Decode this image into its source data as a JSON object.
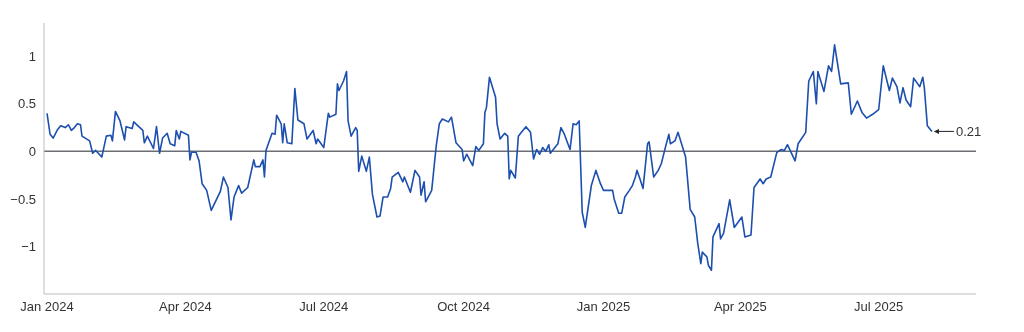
{
  "chart_data": {
    "type": "line",
    "x": [
      "2024-01-01",
      "2024-01-03",
      "2024-01-05",
      "2024-01-08",
      "2024-01-10",
      "2024-01-13",
      "2024-01-15",
      "2024-01-17",
      "2024-01-19",
      "2024-01-21",
      "2024-01-23",
      "2024-01-24",
      "2024-01-29",
      "2024-01-31",
      "2024-02-02",
      "2024-02-06",
      "2024-02-09",
      "2024-02-12",
      "2024-02-13",
      "2024-02-15",
      "2024-02-18",
      "2024-02-21",
      "2024-02-22",
      "2024-02-26",
      "2024-02-27",
      "2024-03-04",
      "2024-03-05",
      "2024-03-07",
      "2024-03-11",
      "2024-03-13",
      "2024-03-15",
      "2024-03-17",
      "2024-03-20",
      "2024-03-22",
      "2024-03-25",
      "2024-03-26",
      "2024-03-28",
      "2024-03-29",
      "2024-04-03",
      "2024-04-04",
      "2024-04-05",
      "2024-04-08",
      "2024-04-10",
      "2024-04-12",
      "2024-04-15",
      "2024-04-18",
      "2024-04-24",
      "2024-04-26",
      "2024-04-29",
      "2024-05-01",
      "2024-05-03",
      "2024-05-06",
      "2024-05-08",
      "2024-05-12",
      "2024-05-16",
      "2024-05-17",
      "2024-05-20",
      "2024-05-22",
      "2024-05-23",
      "2024-05-24",
      "2024-05-28",
      "2024-05-30",
      "2024-05-31",
      "2024-06-03",
      "2024-06-04",
      "2024-06-05",
      "2024-06-07",
      "2024-06-10",
      "2024-06-12",
      "2024-06-14",
      "2024-06-18",
      "2024-06-20",
      "2024-06-24",
      "2024-06-26",
      "2024-06-27",
      "2024-07-01",
      "2024-07-04",
      "2024-07-05",
      "2024-07-09",
      "2024-07-10",
      "2024-07-11",
      "2024-07-14",
      "2024-07-16",
      "2024-07-17",
      "2024-07-19",
      "2024-07-22",
      "2024-07-23",
      "2024-07-24",
      "2024-07-26",
      "2024-07-29",
      "2024-07-31",
      "2024-08-02",
      "2024-08-05",
      "2024-08-07",
      "2024-08-09",
      "2024-08-12",
      "2024-08-14",
      "2024-08-15",
      "2024-08-19",
      "2024-08-22",
      "2024-08-23",
      "2024-08-27",
      "2024-08-30",
      "2024-09-02",
      "2024-09-03",
      "2024-09-05",
      "2024-09-06",
      "2024-09-10",
      "2024-09-13",
      "2024-09-15",
      "2024-09-17",
      "2024-09-21",
      "2024-09-23",
      "2024-09-26",
      "2024-09-30",
      "2024-10-01",
      "2024-10-03",
      "2024-10-07",
      "2024-10-09",
      "2024-10-11",
      "2024-10-14",
      "2024-10-15",
      "2024-10-16",
      "2024-10-18",
      "2024-10-22",
      "2024-10-23",
      "2024-10-25",
      "2024-10-28",
      "2024-10-30",
      "2024-10-31",
      "2024-11-01",
      "2024-11-04",
      "2024-11-06",
      "2024-11-08",
      "2024-11-11",
      "2024-11-14",
      "2024-11-16",
      "2024-11-18",
      "2024-11-20",
      "2024-11-22",
      "2024-11-24",
      "2024-11-26",
      "2024-11-27",
      "2024-12-02",
      "2024-12-04",
      "2024-12-06",
      "2024-12-10",
      "2024-12-12",
      "2024-12-14",
      "2024-12-16",
      "2024-12-18",
      "2024-12-20",
      "2024-12-24",
      "2024-12-27",
      "2024-12-30",
      "2025-01-01",
      "2025-01-03",
      "2025-01-07",
      "2025-01-08",
      "2025-01-11",
      "2025-01-13",
      "2025-01-15",
      "2025-01-18",
      "2025-01-20",
      "2025-01-22",
      "2025-01-23",
      "2025-01-25",
      "2025-01-27",
      "2025-01-30",
      "2025-01-31",
      "2025-02-03",
      "2025-02-06",
      "2025-02-08",
      "2025-02-11",
      "2025-02-13",
      "2025-02-14",
      "2025-02-17",
      "2025-02-19",
      "2025-02-24",
      "2025-02-27",
      "2025-03-02",
      "2025-03-04",
      "2025-03-06",
      "2025-03-07",
      "2025-03-10",
      "2025-03-11",
      "2025-03-13",
      "2025-03-14",
      "2025-03-18",
      "2025-03-19",
      "2025-03-21",
      "2025-03-25",
      "2025-03-28",
      "2025-04-02",
      "2025-04-04",
      "2025-04-08",
      "2025-04-10",
      "2025-04-14",
      "2025-04-16",
      "2025-04-18",
      "2025-04-21",
      "2025-04-25",
      "2025-04-28",
      "2025-04-30",
      "2025-05-02",
      "2025-05-07",
      "2025-05-09",
      "2025-05-14",
      "2025-05-16",
      "2025-05-19",
      "2025-05-21",
      "2025-05-22",
      "2025-05-26",
      "2025-05-29",
      "2025-05-31",
      "2025-06-02",
      "2025-06-06",
      "2025-06-11",
      "2025-06-13",
      "2025-06-17",
      "2025-06-20",
      "2025-06-23",
      "2025-06-27",
      "2025-07-01",
      "2025-07-04",
      "2025-07-08",
      "2025-07-10",
      "2025-07-13",
      "2025-07-15",
      "2025-07-17",
      "2025-07-19",
      "2025-07-22",
      "2025-07-24",
      "2025-07-28",
      "2025-07-30",
      "2025-07-31",
      "2025-08-02",
      "2025-08-05"
    ],
    "series": [
      {
        "color": "#1c4fae",
        "values": [
          0.4,
          0.18,
          0.14,
          0.23,
          0.27,
          0.25,
          0.28,
          0.22,
          0.25,
          0.29,
          0.28,
          0.16,
          0.11,
          -0.02,
          0.01,
          -0.06,
          0.16,
          0.17,
          0.11,
          0.42,
          0.32,
          0.12,
          0.26,
          0.24,
          0.31,
          0.22,
          0.09,
          0.16,
          0.03,
          0.26,
          -0.02,
          0.14,
          0.19,
          0.08,
          0.06,
          0.22,
          0.13,
          0.21,
          0.17,
          -0.09,
          -0.01,
          -0.01,
          -0.1,
          -0.34,
          -0.41,
          -0.62,
          -0.42,
          -0.27,
          -0.38,
          -0.72,
          -0.48,
          -0.36,
          -0.44,
          -0.38,
          -0.09,
          -0.16,
          -0.16,
          -0.09,
          -0.27,
          0.01,
          0.19,
          0.18,
          0.38,
          0.29,
          0.09,
          0.29,
          0.09,
          0.08,
          0.66,
          0.33,
          0.29,
          0.13,
          0.22,
          0.08,
          0.13,
          0.04,
          0.4,
          0.36,
          0.39,
          0.71,
          0.64,
          0.74,
          0.84,
          0.32,
          0.16,
          0.25,
          0.22,
          -0.21,
          -0.05,
          -0.21,
          -0.06,
          -0.45,
          -0.69,
          -0.68,
          -0.48,
          -0.48,
          -0.39,
          -0.27,
          -0.22,
          -0.32,
          -0.27,
          -0.43,
          -0.2,
          -0.27,
          -0.46,
          -0.32,
          -0.53,
          -0.41,
          0.06,
          0.29,
          0.34,
          0.31,
          0.36,
          0.09,
          0.02,
          -0.1,
          -0.03,
          -0.15,
          0.05,
          0.01,
          0.08,
          0.41,
          0.46,
          0.78,
          0.57,
          0.29,
          0.13,
          0.19,
          0.16,
          -0.29,
          -0.2,
          -0.28,
          0.16,
          0.2,
          0.26,
          0.2,
          -0.08,
          0.02,
          -0.03,
          0.04,
          0.0,
          0.07,
          -0.02,
          0.08,
          0.25,
          0.19,
          0.02,
          0.29,
          0.28,
          0.32,
          -0.64,
          -0.8,
          -0.36,
          -0.2,
          -0.34,
          -0.41,
          -0.41,
          -0.41,
          -0.5,
          -0.65,
          -0.65,
          -0.48,
          -0.41,
          -0.36,
          -0.27,
          -0.2,
          -0.29,
          -0.39,
          0.08,
          0.1,
          -0.27,
          -0.2,
          -0.13,
          0.06,
          0.18,
          0.08,
          0.11,
          0.2,
          -0.06,
          -0.61,
          -0.69,
          -0.97,
          -1.18,
          -1.06,
          -1.11,
          -1.2,
          -1.25,
          -0.9,
          -0.76,
          -0.92,
          -0.86,
          -0.51,
          -0.8,
          -0.69,
          -0.9,
          -0.88,
          -0.38,
          -0.29,
          -0.34,
          -0.29,
          -0.27,
          -0.01,
          0.02,
          0.01,
          0.07,
          -0.1,
          0.08,
          0.2,
          0.74,
          0.84,
          0.5,
          0.84,
          0.63,
          0.9,
          0.84,
          1.12,
          0.71,
          0.72,
          0.39,
          0.53,
          0.41,
          0.35,
          0.39,
          0.44,
          0.9,
          0.64,
          0.77,
          0.68,
          0.51,
          0.67,
          0.54,
          0.47,
          0.77,
          0.68,
          0.78,
          0.67,
          0.27,
          0.21
        ]
      }
    ],
    "xlim": [
      "2023-12-30",
      "2025-09-03"
    ],
    "xticks": [
      {
        "value": "2024-01-01",
        "label": "Jan 2024"
      },
      {
        "value": "2024-04-01",
        "label": "Apr 2024"
      },
      {
        "value": "2024-07-01",
        "label": "Jul 2024"
      },
      {
        "value": "2024-10-01",
        "label": "Oct 2024"
      },
      {
        "value": "2025-01-01",
        "label": "Jan 2025"
      },
      {
        "value": "2025-04-01",
        "label": "Apr 2025"
      },
      {
        "value": "2025-07-01",
        "label": "Jul 2025"
      }
    ],
    "ylim": [
      -1.5,
      1.35
    ],
    "yticks": [
      {
        "value": -1,
        "label": "−1"
      },
      {
        "value": -0.5,
        "label": "−0.5"
      },
      0,
      0.5,
      1
    ],
    "ref_lines": [
      {
        "axis": "y",
        "value": 0,
        "color": "#6b6e72"
      }
    ],
    "annotations": [
      {
        "text": "0.21",
        "x": "2025-08-05",
        "y": 0.21
      }
    ],
    "grid": false
  }
}
